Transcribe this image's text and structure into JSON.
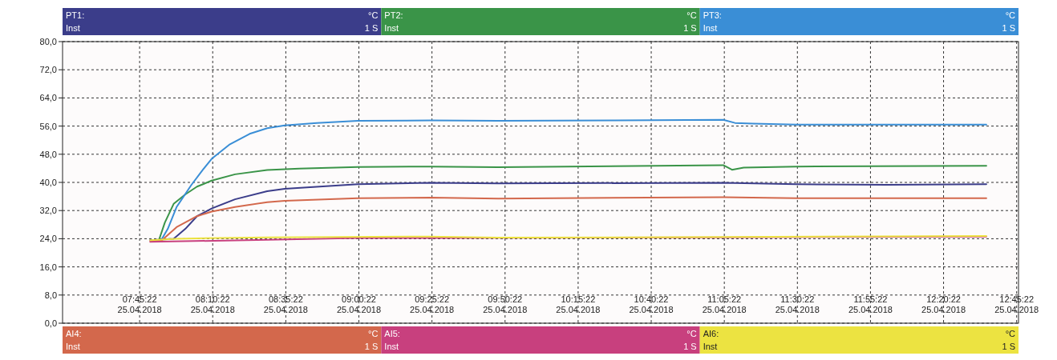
{
  "chart_data": {
    "type": "line",
    "xlim": [
      "2018-04-25T07:19",
      "2018-04-25T12:46"
    ],
    "ylim": [
      0,
      80
    ],
    "xticks": [
      {
        "value": "2018-04-25T07:45:22",
        "label": "07:45:22\n25.04.2018"
      },
      {
        "value": "2018-04-25T08:10:22",
        "label": "08:10:22\n25.04.2018"
      },
      {
        "value": "2018-04-25T08:35:22",
        "label": "08:35:22\n25.04.2018"
      },
      {
        "value": "2018-04-25T09:00:22",
        "label": "09:00:22\n25.04.2018"
      },
      {
        "value": "2018-04-25T09:25:22",
        "label": "09:25:22\n25.04.2018"
      },
      {
        "value": "2018-04-25T09:50:22",
        "label": "09:50:22\n25.04.2018"
      },
      {
        "value": "2018-04-25T10:15:22",
        "label": "10:15:22\n25.04.2018"
      },
      {
        "value": "2018-04-25T10:40:22",
        "label": "10:40:22\n25.04.2018"
      },
      {
        "value": "2018-04-25T11:05:22",
        "label": "11:05:22\n25.04.2018"
      },
      {
        "value": "2018-04-25T11:30:22",
        "label": "11:30:22\n25.04.2018"
      },
      {
        "value": "2018-04-25T11:55:22",
        "label": "11:55:22\n25.04.2018"
      },
      {
        "value": "2018-04-25T12:20:22",
        "label": "12:20:22\n25.04.2018"
      },
      {
        "value": "2018-04-25T12:45:22",
        "label": "12:45:22\n25.04.2018"
      }
    ],
    "yticks": [
      {
        "value": 0,
        "label": "0,0"
      },
      {
        "value": 8,
        "label": "8,0"
      },
      {
        "value": 16,
        "label": "16,0"
      },
      {
        "value": 24,
        "label": "24,0"
      },
      {
        "value": 32,
        "label": "32,0"
      },
      {
        "value": 40,
        "label": "40,0"
      },
      {
        "value": 48,
        "label": "48,0"
      },
      {
        "value": 56,
        "label": "56,0"
      },
      {
        "value": 64,
        "label": "64,0"
      },
      {
        "value": 72,
        "label": "72,0"
      },
      {
        "value": 80,
        "label": "80,0"
      }
    ],
    "grid": true,
    "legend": "top",
    "annotations": [
      "°C",
      "Inst",
      "1 S"
    ],
    "series": [
      {
        "name": "PT1:",
        "color": "#3b3d8a",
        "x": [
          "2018-04-25T07:49",
          "2018-04-25T07:57",
          "2018-04-25T08:01",
          "2018-04-25T08:05",
          "2018-04-25T08:10",
          "2018-04-25T08:18",
          "2018-04-25T08:29",
          "2018-04-25T08:35",
          "2018-04-25T09:00",
          "2018-04-25T09:25",
          "2018-04-25T09:48",
          "2018-04-25T11:05",
          "2018-04-25T11:30",
          "2018-04-25T12:01",
          "2018-04-25T12:35"
        ],
        "values": [
          23.6,
          24.0,
          26.8,
          30.4,
          32.6,
          35.2,
          37.5,
          38.2,
          39.5,
          39.9,
          39.7,
          39.9,
          39.5,
          39.3,
          39.5
        ]
      },
      {
        "name": "PT2:",
        "color": "#3a9448",
        "x": [
          "2018-04-25T07:52",
          "2018-04-25T07:54",
          "2018-04-25T07:57",
          "2018-04-25T08:01",
          "2018-04-25T08:05",
          "2018-04-25T08:10",
          "2018-04-25T08:18",
          "2018-04-25T08:29",
          "2018-04-25T08:40",
          "2018-04-25T09:00",
          "2018-04-25T09:25",
          "2018-04-25T09:48",
          "2018-04-25T11:05",
          "2018-04-25T11:08",
          "2018-04-25T11:12",
          "2018-04-25T11:30",
          "2018-04-25T12:35"
        ],
        "values": [
          23.7,
          28.6,
          33.9,
          36.6,
          38.8,
          40.5,
          42.3,
          43.5,
          43.9,
          44.4,
          44.5,
          44.3,
          44.9,
          43.6,
          44.2,
          44.5,
          44.7
        ]
      },
      {
        "name": "PT3:",
        "color": "#3a8ed6",
        "x": [
          "2018-04-25T07:53",
          "2018-04-25T07:55",
          "2018-04-25T07:58",
          "2018-04-25T08:03",
          "2018-04-25T08:07",
          "2018-04-25T08:10",
          "2018-04-25T08:16",
          "2018-04-25T08:23",
          "2018-04-25T08:29",
          "2018-04-25T08:35",
          "2018-04-25T08:46",
          "2018-04-25T09:00",
          "2018-04-25T09:25",
          "2018-04-25T09:48",
          "2018-04-25T10:28",
          "2018-04-25T11:05",
          "2018-04-25T11:09",
          "2018-04-25T11:15",
          "2018-04-25T11:30",
          "2018-04-25T12:35"
        ],
        "values": [
          24.0,
          26.8,
          33.0,
          39.2,
          43.6,
          46.7,
          50.7,
          53.8,
          55.4,
          56.2,
          56.9,
          57.5,
          57.6,
          57.5,
          57.6,
          57.8,
          56.9,
          56.7,
          56.4,
          56.4
        ]
      },
      {
        "name": "AI4:",
        "color": "#d3684c",
        "x": [
          "2018-04-25T07:49",
          "2018-04-25T07:53",
          "2018-04-25T07:58",
          "2018-04-25T08:05",
          "2018-04-25T08:10",
          "2018-04-25T08:18",
          "2018-04-25T08:29",
          "2018-04-25T08:35",
          "2018-04-25T09:00",
          "2018-04-25T09:25",
          "2018-04-25T09:48",
          "2018-04-25T11:05",
          "2018-04-25T11:30",
          "2018-04-25T12:35"
        ],
        "values": [
          23.3,
          23.6,
          27.3,
          30.4,
          31.7,
          33.0,
          34.4,
          34.8,
          35.5,
          35.7,
          35.4,
          35.8,
          35.5,
          35.5
        ]
      },
      {
        "name": "AI5:",
        "color": "#c8407e",
        "x": [
          "2018-04-25T07:49",
          "2018-04-25T08:29",
          "2018-04-25T09:00",
          "2018-04-25T09:48",
          "2018-04-25T11:05",
          "2018-04-25T12:35"
        ],
        "values": [
          23.1,
          23.7,
          24.2,
          null,
          24.4,
          24.6
        ]
      },
      {
        "name": "AI6:",
        "color": "#ece341",
        "x": [
          "2018-04-25T07:49",
          "2018-04-25T07:58",
          "2018-04-25T08:29",
          "2018-04-25T09:24",
          "2018-04-25T09:48",
          "2018-04-25T11:05",
          "2018-04-25T12:35"
        ],
        "values": [
          23.6,
          24.0,
          24.4,
          24.6,
          24.3,
          24.5,
          24.8
        ]
      }
    ]
  }
}
